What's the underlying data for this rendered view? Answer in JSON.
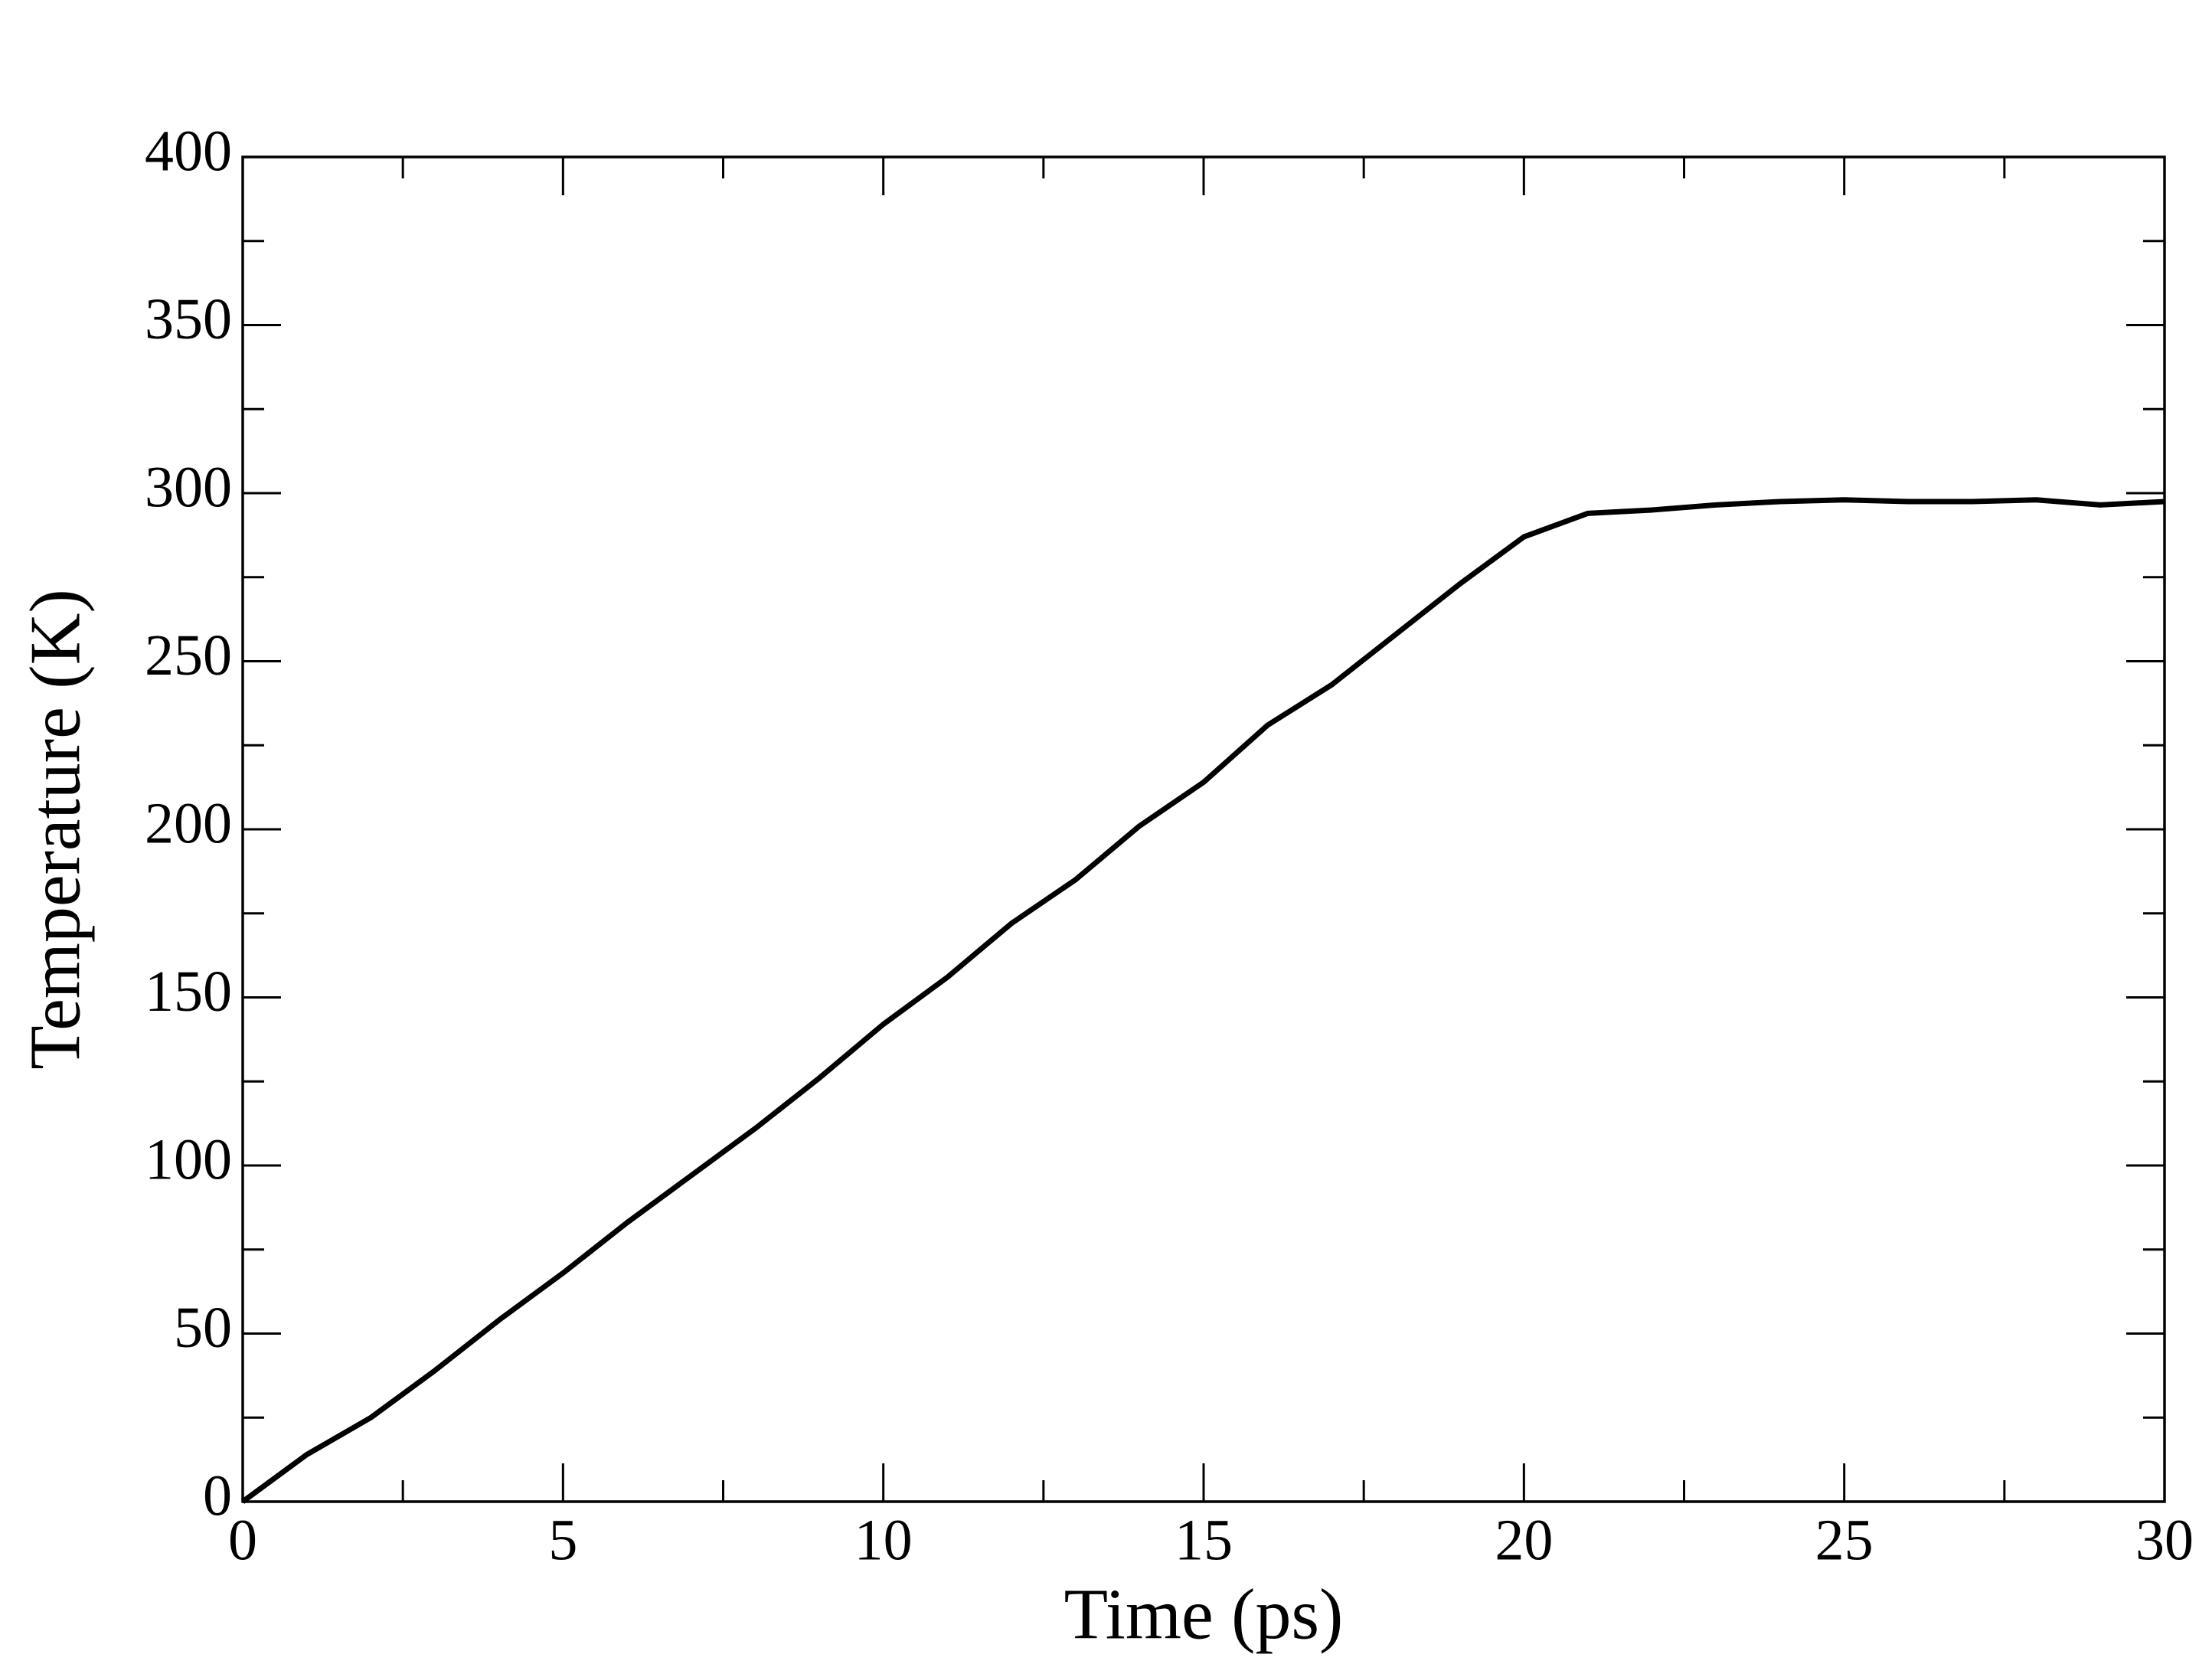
{
  "chart_data": {
    "type": "line",
    "x_label": "Time (ps)",
    "y_label": "Temperature (K)",
    "x": [
      0,
      1,
      2,
      3,
      4,
      5,
      6,
      7,
      8,
      9,
      10,
      11,
      12,
      13,
      14,
      15,
      16,
      17,
      18,
      19,
      20,
      21,
      22,
      23,
      24,
      25,
      26,
      27,
      28,
      29,
      30
    ],
    "series": [
      {
        "name": "Temperature",
        "color": "#000000",
        "values": [
          0,
          14,
          25,
          39,
          54,
          68,
          83,
          97,
          111,
          126,
          142,
          156,
          172,
          185,
          201,
          214,
          231,
          243,
          258,
          273,
          287,
          294,
          295,
          296.5,
          297.5,
          298,
          297.5,
          297.5,
          298,
          296.5,
          297.5
        ]
      }
    ],
    "xlim": [
      0,
      30
    ],
    "xticks": [
      0,
      5,
      10,
      15,
      20,
      25,
      30
    ],
    "ylim": [
      0,
      400
    ],
    "yticks": [
      0,
      50,
      100,
      150,
      200,
      250,
      300,
      350,
      400
    ],
    "grid": false
  }
}
